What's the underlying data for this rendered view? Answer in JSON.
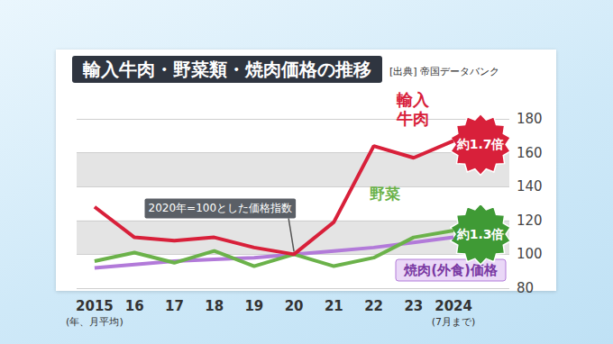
{
  "chart_data": {
    "type": "line",
    "title": "輸入牛肉・野菜類・焼肉価格の推移",
    "source": "[出典] 帝国データバンク",
    "categories": [
      "2015\n(年、月平均)",
      "16",
      "17",
      "18",
      "19",
      "20",
      "21",
      "22",
      "23",
      "2024\n(7月まで)"
    ],
    "series": [
      {
        "name": "輸入牛肉",
        "color": "#d8203a",
        "values": [
          128,
          110,
          108,
          110,
          104,
          100,
          119,
          164,
          157,
          167
        ]
      },
      {
        "name": "野菜",
        "color": "#6bb24a",
        "values": [
          96,
          101,
          95,
          102,
          93,
          100,
          93,
          98,
          110,
          114
        ]
      },
      {
        "name": "焼肉(外食)価格",
        "color": "#b27ad9",
        "values": [
          92,
          94,
          96,
          97,
          98,
          100,
          102,
          104,
          107,
          110
        ]
      }
    ],
    "ylim": [
      80,
      180
    ],
    "yticks": [
      80,
      100,
      120,
      140,
      160,
      180
    ],
    "grid": true,
    "annotations": [
      {
        "text": "2020年=100とした価格指数",
        "category": "20",
        "value": 100
      },
      {
        "text": "約1.7倍",
        "series": "輸入牛肉"
      },
      {
        "text": "約1.3倍",
        "series": "野菜"
      }
    ]
  }
}
